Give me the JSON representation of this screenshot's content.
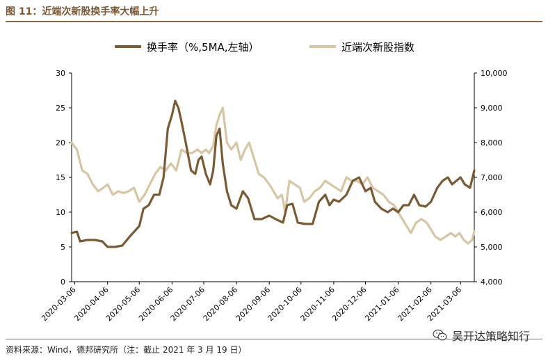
{
  "header": {
    "title": "图 11：近端次新股换手率大幅上升"
  },
  "footer": {
    "source": "资料来源：Wind，德邦研究所（注：截止 2021 年 3 月 19 日）"
  },
  "watermark": {
    "text": "吴开达策略知行",
    "icon": "wechat-icon"
  },
  "colors": {
    "turnover": "#7a5a33",
    "index": "#d6c6a4",
    "accent": "#8b6a43"
  },
  "chart_data": {
    "type": "line",
    "title": "",
    "xlabel": "",
    "ylabel_left": "",
    "ylabel_right": "",
    "legend_position": "top",
    "grid": false,
    "ylim_left": [
      0,
      30
    ],
    "ylim_right": [
      4000,
      10000
    ],
    "y_left_ticks": [
      "0",
      "5",
      "10",
      "15",
      "20",
      "25",
      "30"
    ],
    "y_right_ticks": [
      "4,000",
      "5,000",
      "6,000",
      "7,000",
      "8,000",
      "9,000",
      "10,000"
    ],
    "x_ticks": [
      "2020-03-06",
      "2020-04-06",
      "2020-05-06",
      "2020-06-06",
      "2020-07-06",
      "2020-08-06",
      "2020-09-06",
      "2020-10-06",
      "2020-11-06",
      "2020-12-06",
      "2021-01-06",
      "2021-02-06",
      "2021-03-06"
    ],
    "x_range": [
      "2020-03-03",
      "2021-03-19"
    ],
    "series": [
      {
        "name": "换手率（%,5MA,左轴）",
        "axis": "left",
        "points": [
          [
            "2020-03-03",
            7.0
          ],
          [
            "2020-03-08",
            7.2
          ],
          [
            "2020-03-11",
            5.8
          ],
          [
            "2020-03-18",
            6.0
          ],
          [
            "2020-03-25",
            6.0
          ],
          [
            "2020-04-01",
            5.8
          ],
          [
            "2020-04-06",
            5.0
          ],
          [
            "2020-04-13",
            5.0
          ],
          [
            "2020-04-20",
            5.2
          ],
          [
            "2020-04-27",
            6.5
          ],
          [
            "2020-05-06",
            8.0
          ],
          [
            "2020-05-10",
            10.5
          ],
          [
            "2020-05-15",
            11.0
          ],
          [
            "2020-05-20",
            12.5
          ],
          [
            "2020-05-25",
            12.5
          ],
          [
            "2020-05-29",
            15.0
          ],
          [
            "2020-06-02",
            22.0
          ],
          [
            "2020-06-06",
            24.0
          ],
          [
            "2020-06-09",
            26.0
          ],
          [
            "2020-06-12",
            25.0
          ],
          [
            "2020-06-15",
            23.0
          ],
          [
            "2020-06-19",
            20.0
          ],
          [
            "2020-06-24",
            16.0
          ],
          [
            "2020-06-28",
            15.5
          ],
          [
            "2020-07-01",
            17.5
          ],
          [
            "2020-07-04",
            18.0
          ],
          [
            "2020-07-08",
            15.5
          ],
          [
            "2020-07-12",
            14.0
          ],
          [
            "2020-07-15",
            16.0
          ],
          [
            "2020-07-18",
            21.0
          ],
          [
            "2020-07-21",
            22.0
          ],
          [
            "2020-07-24",
            17.0
          ],
          [
            "2020-07-28",
            13.0
          ],
          [
            "2020-08-01",
            11.0
          ],
          [
            "2020-08-06",
            10.5
          ],
          [
            "2020-08-12",
            13.0
          ],
          [
            "2020-08-17",
            12.0
          ],
          [
            "2020-08-23",
            9.0
          ],
          [
            "2020-08-30",
            9.0
          ],
          [
            "2020-09-06",
            9.5
          ],
          [
            "2020-09-12",
            9.0
          ],
          [
            "2020-09-19",
            8.5
          ],
          [
            "2020-09-23",
            11.0
          ],
          [
            "2020-09-28",
            11.2
          ],
          [
            "2020-10-03",
            8.5
          ],
          [
            "2020-10-10",
            8.3
          ],
          [
            "2020-10-17",
            8.3
          ],
          [
            "2020-10-23",
            11.5
          ],
          [
            "2020-10-29",
            12.5
          ],
          [
            "2020-11-02",
            11.0
          ],
          [
            "2020-11-06",
            11.8
          ],
          [
            "2020-11-11",
            11.5
          ],
          [
            "2020-11-18",
            12.5
          ],
          [
            "2020-11-24",
            14.5
          ],
          [
            "2020-11-30",
            15.0
          ],
          [
            "2020-12-03",
            14.0
          ],
          [
            "2020-12-06",
            13.0
          ],
          [
            "2020-12-11",
            13.5
          ],
          [
            "2020-12-15",
            11.5
          ],
          [
            "2020-12-21",
            10.5
          ],
          [
            "2020-12-27",
            10.0
          ],
          [
            "2021-01-01",
            10.5
          ],
          [
            "2021-01-06",
            10.0
          ],
          [
            "2021-01-11",
            11.0
          ],
          [
            "2021-01-16",
            11.0
          ],
          [
            "2021-01-21",
            12.5
          ],
          [
            "2021-01-26",
            11.0
          ],
          [
            "2021-02-01",
            10.8
          ],
          [
            "2021-02-06",
            11.5
          ],
          [
            "2021-02-12",
            13.5
          ],
          [
            "2021-02-17",
            14.5
          ],
          [
            "2021-02-22",
            15.0
          ],
          [
            "2021-02-26",
            14.0
          ],
          [
            "2021-03-02",
            14.5
          ],
          [
            "2021-03-06",
            15.0
          ],
          [
            "2021-03-10",
            14.0
          ],
          [
            "2021-03-15",
            13.5
          ],
          [
            "2021-03-19",
            16.0
          ]
        ]
      },
      {
        "name": "近端次新股指数",
        "axis": "right",
        "points": [
          [
            "2020-03-03",
            8000
          ],
          [
            "2020-03-08",
            7800
          ],
          [
            "2020-03-13",
            7200
          ],
          [
            "2020-03-18",
            7100
          ],
          [
            "2020-03-23",
            6800
          ],
          [
            "2020-03-28",
            6600
          ],
          [
            "2020-04-02",
            6700
          ],
          [
            "2020-04-06",
            6800
          ],
          [
            "2020-04-11",
            6500
          ],
          [
            "2020-04-16",
            6600
          ],
          [
            "2020-04-21",
            6550
          ],
          [
            "2020-04-26",
            6600
          ],
          [
            "2020-05-01",
            6700
          ],
          [
            "2020-05-06",
            6300
          ],
          [
            "2020-05-11",
            6500
          ],
          [
            "2020-05-16",
            6800
          ],
          [
            "2020-05-21",
            7100
          ],
          [
            "2020-05-26",
            7300
          ],
          [
            "2020-05-31",
            7200
          ],
          [
            "2020-06-05",
            7400
          ],
          [
            "2020-06-10",
            7200
          ],
          [
            "2020-06-15",
            7800
          ],
          [
            "2020-06-20",
            7700
          ],
          [
            "2020-06-25",
            7700
          ],
          [
            "2020-06-30",
            7800
          ],
          [
            "2020-07-04",
            7700
          ],
          [
            "2020-07-08",
            7800
          ],
          [
            "2020-07-11",
            7700
          ],
          [
            "2020-07-15",
            7900
          ],
          [
            "2020-07-18",
            8500
          ],
          [
            "2020-07-21",
            8800
          ],
          [
            "2020-07-24",
            9000
          ],
          [
            "2020-07-28",
            8000
          ],
          [
            "2020-08-01",
            7800
          ],
          [
            "2020-08-06",
            8000
          ],
          [
            "2020-08-10",
            7500
          ],
          [
            "2020-08-14",
            7800
          ],
          [
            "2020-08-18",
            8000
          ],
          [
            "2020-08-22",
            7600
          ],
          [
            "2020-08-27",
            7100
          ],
          [
            "2020-09-01",
            7000
          ],
          [
            "2020-09-06",
            6800
          ],
          [
            "2020-09-10",
            6600
          ],
          [
            "2020-09-14",
            6400
          ],
          [
            "2020-09-18",
            6500
          ],
          [
            "2020-09-21",
            6000
          ],
          [
            "2020-09-25",
            6900
          ],
          [
            "2020-09-30",
            6800
          ],
          [
            "2020-10-05",
            6700
          ],
          [
            "2020-10-09",
            6300
          ],
          [
            "2020-10-14",
            6400
          ],
          [
            "2020-10-19",
            6600
          ],
          [
            "2020-10-24",
            6700
          ],
          [
            "2020-10-29",
            6900
          ],
          [
            "2020-11-03",
            6800
          ],
          [
            "2020-11-08",
            6700
          ],
          [
            "2020-11-13",
            6600
          ],
          [
            "2020-11-18",
            7000
          ],
          [
            "2020-11-23",
            6900
          ],
          [
            "2020-11-28",
            6900
          ],
          [
            "2020-12-03",
            6800
          ],
          [
            "2020-12-08",
            7000
          ],
          [
            "2020-12-13",
            6700
          ],
          [
            "2020-12-18",
            6600
          ],
          [
            "2020-12-23",
            6500
          ],
          [
            "2020-12-28",
            6300
          ],
          [
            "2021-01-02",
            6200
          ],
          [
            "2021-01-06",
            6000
          ],
          [
            "2021-01-10",
            5800
          ],
          [
            "2021-01-14",
            5600
          ],
          [
            "2021-01-18",
            5400
          ],
          [
            "2021-01-23",
            5700
          ],
          [
            "2021-01-28",
            5800
          ],
          [
            "2021-02-02",
            5700
          ],
          [
            "2021-02-06",
            5500
          ],
          [
            "2021-02-10",
            5300
          ],
          [
            "2021-02-15",
            5200
          ],
          [
            "2021-02-20",
            5300
          ],
          [
            "2021-02-25",
            5400
          ],
          [
            "2021-03-01",
            5300
          ],
          [
            "2021-03-05",
            5400
          ],
          [
            "2021-03-09",
            5200
          ],
          [
            "2021-03-13",
            5100
          ],
          [
            "2021-03-17",
            5200
          ],
          [
            "2021-03-19",
            5450
          ]
        ]
      }
    ]
  }
}
